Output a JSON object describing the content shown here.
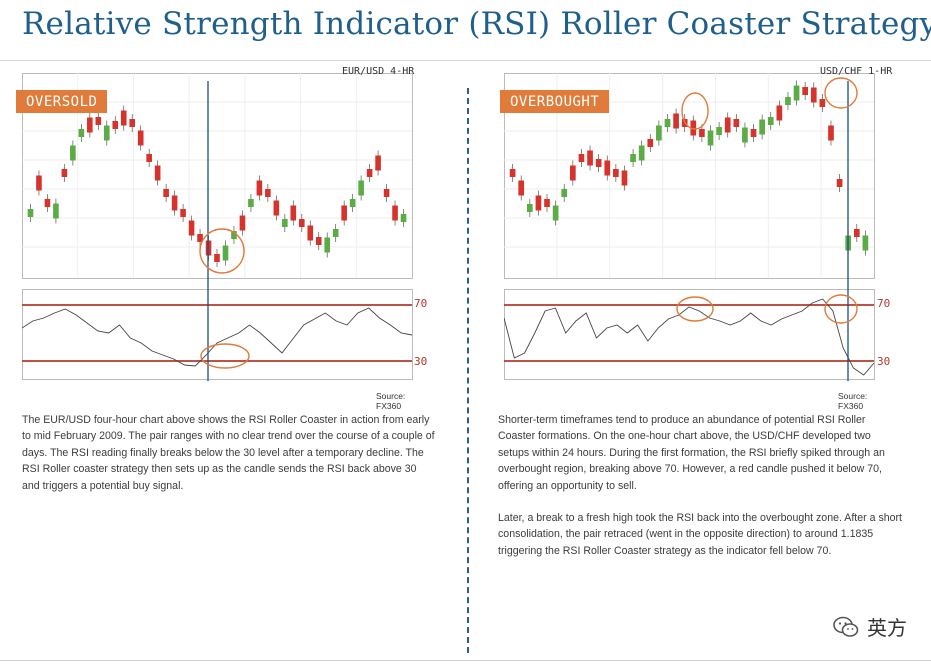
{
  "title": "Relative Strength Indicator (RSI) Roller Coaster Strategy",
  "left": {
    "badge": "OVERSOLD",
    "timeframe": "EUR/USD 4-HR",
    "source": "Source: FX360",
    "level_high": "70",
    "level_low": "30",
    "text": "The EUR/USD four-hour chart above shows the RSI Roller Coaster in action from early to mid February 2009. The pair ranges with no clear trend over the course of a couple of days. The RSI reading finally breaks below the 30 level after a temporary decline. The RSI Roller coaster strategy then sets up as the candle sends the RSI back above 30 and triggers a potential buy signal."
  },
  "right": {
    "badge": "OVERBOUGHT",
    "timeframe": "USD/CHF 1-HR",
    "source": "Source: FX360",
    "level_high": "70",
    "level_low": "30",
    "text1": "Shorter-term timeframes tend to produce an abundance of potential RSI Roller Coaster formations. On the one-hour chart above, the USD/CHF developed two setups within 24 hours. During the first formation, the RSI briefly spiked through an overbought region, breaking above 70. However, a red candle pushed it below 70, offering an opportunity to sell.",
    "text2": "Later, a break to a fresh high took the RSI back into the overbought zone. After a short consolidation, the pair retraced (went in the opposite direction) to around 1.1835 triggering the RSI Roller Coaster strategy as the indicator fell below 70."
  },
  "brand": {
    "name": "英方",
    "icon": "wechat-icon"
  },
  "colors": {
    "title": "#1f5f8b",
    "badge": "#e07b39",
    "bull": "#5aac44",
    "bear": "#d6332c",
    "level": "#b23a2e"
  }
}
